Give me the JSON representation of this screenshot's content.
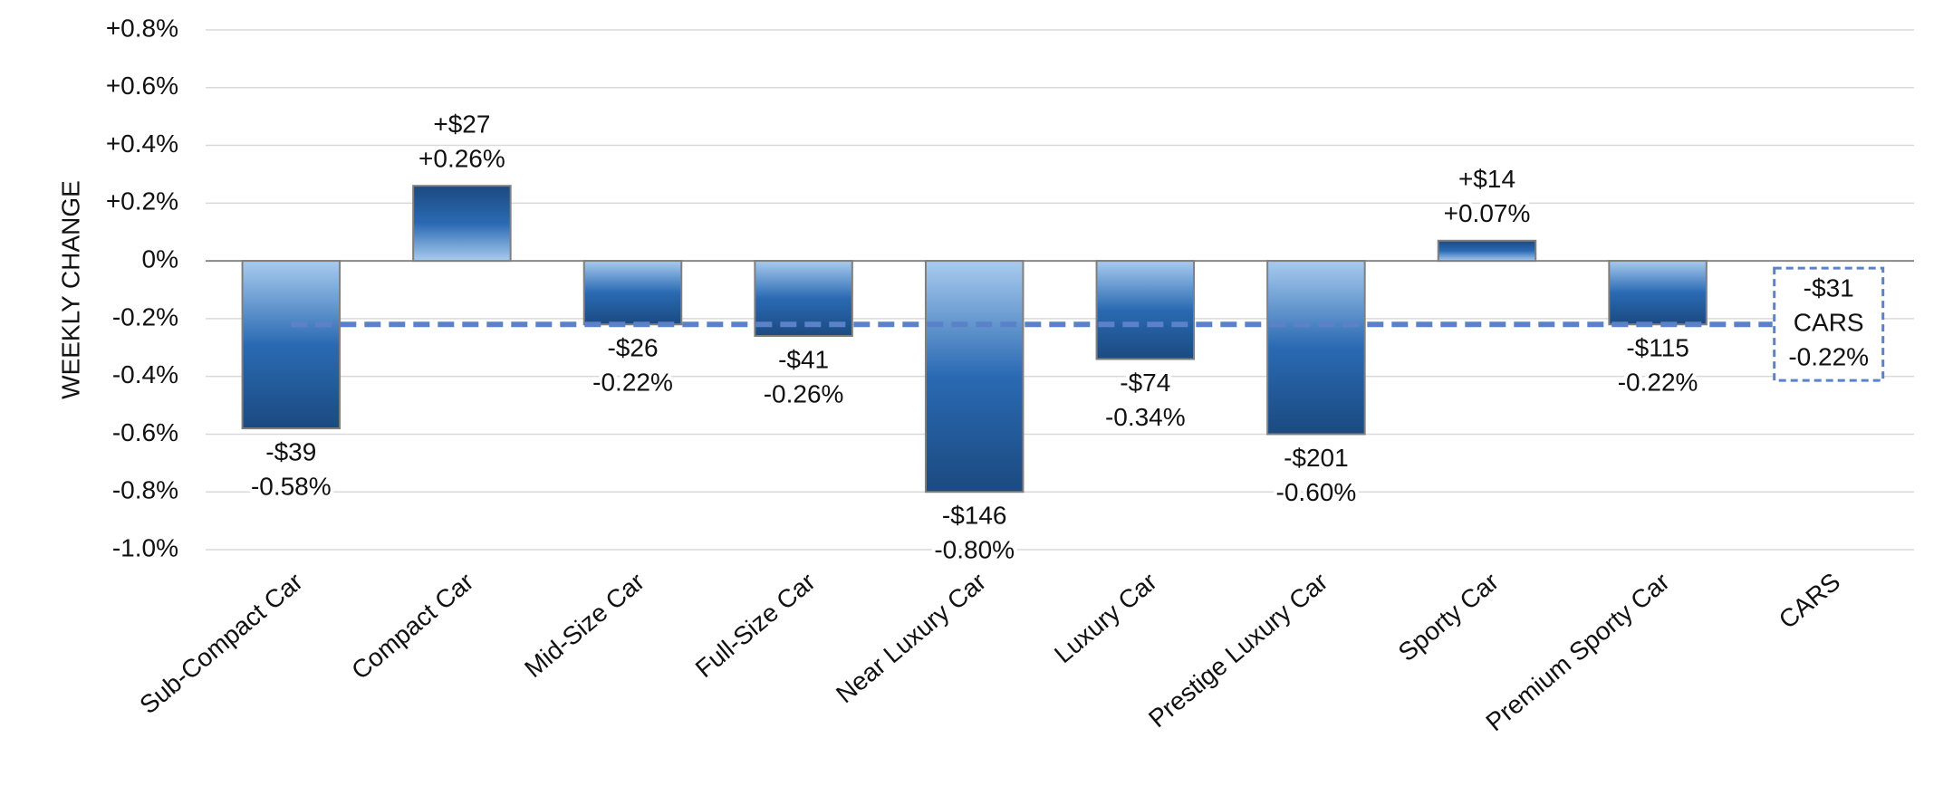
{
  "chart_data": {
    "type": "bar",
    "y_label": "WEEKLY CHANGE",
    "categories": [
      "Sub-Compact Car",
      "Compact Car",
      "Mid-Size Car",
      "Full-Size Car",
      "Near Luxury Car",
      "Luxury Car",
      "Prestige Luxury Car",
      "Sporty Car",
      "Premium Sporty Car",
      "CARS"
    ],
    "values": [
      -0.58,
      0.26,
      -0.22,
      -0.26,
      -0.8,
      -0.34,
      -0.6,
      0.07,
      -0.22,
      -0.22
    ],
    "value_labels": [
      "-0.58%",
      "+0.26%",
      "-0.22%",
      "-0.26%",
      "-0.80%",
      "-0.34%",
      "-0.60%",
      "+0.07%",
      "-0.22%",
      "-0.22%"
    ],
    "dollar_labels": [
      "-$39",
      "+$27",
      "-$26",
      "-$41",
      "-$146",
      "-$74",
      "-$201",
      "+$14",
      "-$115",
      "-$31"
    ],
    "reference": {
      "label": "CARS",
      "color": "#5b82c8"
    },
    "color": "#2a6ab3",
    "ylim": [
      -1.0,
      0.8
    ],
    "yticks": [
      {
        "value": 0.8,
        "label": "+0.8%"
      },
      {
        "value": 0.6,
        "label": "+0.6%"
      },
      {
        "value": 0.4,
        "label": "+0.4%"
      },
      {
        "value": 0.2,
        "label": "+0.2%"
      },
      {
        "value": 0,
        "label": "0%"
      },
      {
        "value": -0.2,
        "label": "-0.2%"
      },
      {
        "value": -0.4,
        "label": "-0.4%"
      },
      {
        "value": -0.6,
        "label": "-0.6%"
      },
      {
        "value": -0.8,
        "label": "-0.8%"
      },
      {
        "value": -1.0,
        "label": "-1.0%"
      }
    ],
    "grid": true
  }
}
